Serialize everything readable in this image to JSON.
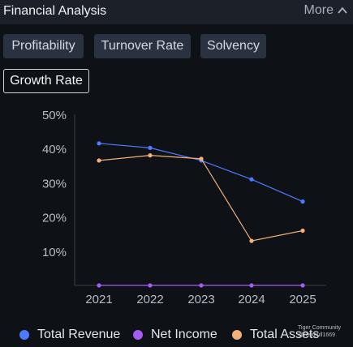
{
  "header": {
    "title": "Financial Analysis",
    "more_label": "More"
  },
  "tabs": [
    {
      "label": "Profitability",
      "active": false
    },
    {
      "label": "Turnover Rate",
      "active": false
    },
    {
      "label": "Solvency",
      "active": false
    },
    {
      "label": "Growth Rate",
      "active": true
    }
  ],
  "chart_data": {
    "type": "line",
    "x": [
      "2021",
      "2022",
      "2023",
      "2024",
      "2025"
    ],
    "y_ticks": [
      "50%",
      "40%",
      "30%",
      "20%",
      "10%"
    ],
    "ylim": [
      0,
      50
    ],
    "series": [
      {
        "name": "Total Revenue",
        "color": "#4a7cff",
        "values": [
          41.5,
          40.2,
          36.5,
          31,
          24.5
        ]
      },
      {
        "name": "Net Income",
        "color": "#a45cf2",
        "values": [
          0,
          0,
          0,
          0,
          0
        ]
      },
      {
        "name": "Total Assets",
        "color": "#f2b07a",
        "values": [
          36.5,
          38,
          37,
          13,
          16
        ]
      }
    ],
    "legend_position": "bottom"
  },
  "watermark": {
    "line1": "Tiger Community",
    "line2": "@Raxbull1669"
  }
}
